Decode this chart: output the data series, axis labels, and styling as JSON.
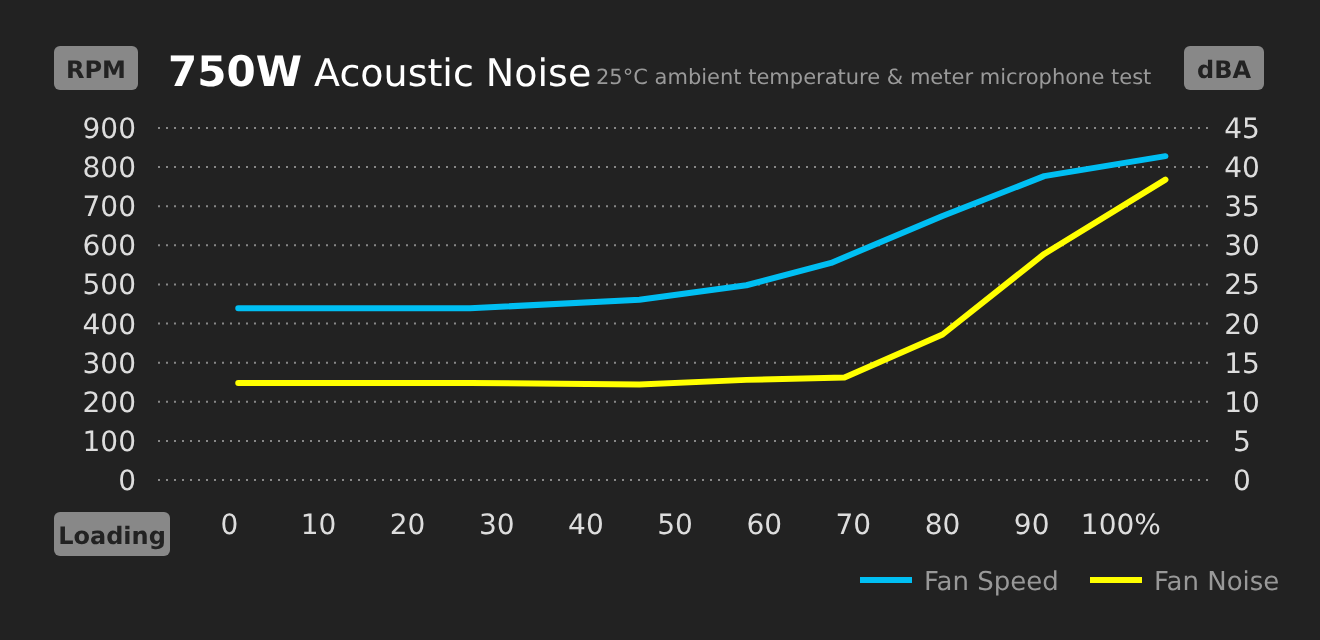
{
  "chart_data": {
    "type": "line",
    "title": "750W Acoustic Noise",
    "subtitle": "25°C ambient temperature & meter microphone test",
    "ylabel": "RPM",
    "y2label": "dBA",
    "xlabel": "Loading",
    "xlim": [
      -8,
      110
    ],
    "xticks": [
      0,
      10,
      20,
      30,
      40,
      50,
      60,
      70,
      80,
      90,
      {
        "value": 100,
        "label": "100%"
      }
    ],
    "ylim": [
      0,
      900
    ],
    "yticks": [
      0,
      100,
      200,
      300,
      400,
      500,
      600,
      700,
      800,
      900
    ],
    "y2lim": [
      0,
      45
    ],
    "y2ticks": [
      0,
      5,
      10,
      15,
      20,
      25,
      30,
      35,
      40,
      45
    ],
    "grid": "y",
    "legend": "bottom right",
    "marker": "none",
    "line_style": "solid",
    "series": [
      {
        "name": "Fan Speed",
        "color": "#00bff3",
        "x": [
          1,
          27,
          46,
          58,
          67.5,
          80,
          91.4,
          105
        ],
        "values": [
          439,
          439,
          461,
          498,
          555,
          675,
          777,
          828
        ]
      },
      {
        "name": "Fan Noise",
        "color": "#ffff00",
        "axis": "y2",
        "x": [
          1,
          27,
          46,
          58,
          69,
          80,
          91.4,
          105
        ],
        "values": [
          12.4,
          12.4,
          12.2,
          12.8,
          13.1,
          18.6,
          28.9,
          38.4
        ]
      }
    ]
  }
}
